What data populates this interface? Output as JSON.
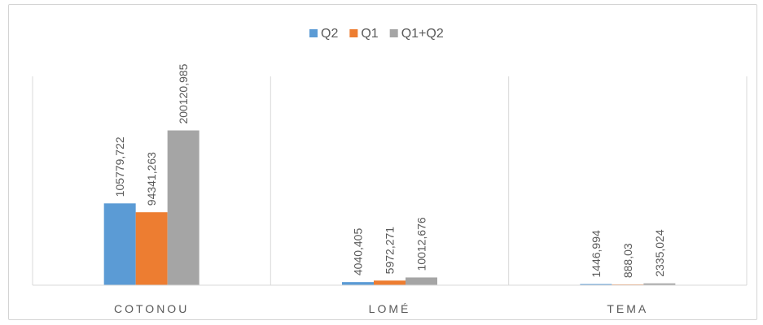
{
  "chart_data": {
    "type": "bar",
    "categories": [
      "COTONOU",
      "LOMÉ",
      "TEMA"
    ],
    "series": [
      {
        "name": "Q2",
        "color": "#5b9bd5",
        "values": [
          105779.722,
          4040.405,
          1446.994
        ],
        "labels": [
          "105779,722",
          "4040,405",
          "1446,994"
        ]
      },
      {
        "name": "Q1",
        "color": "#ed7d31",
        "values": [
          94341.263,
          5972.271,
          888.03
        ],
        "labels": [
          "94341,263",
          "5972,271",
          "888,03"
        ]
      },
      {
        "name": "Q1+Q2",
        "color": "#a5a5a5",
        "values": [
          200120.985,
          10012.676,
          2335.024
        ],
        "labels": [
          "200120,985",
          "10012,676",
          "2335,024"
        ]
      }
    ],
    "ylim": [
      0,
      270000
    ],
    "grid": false,
    "category_separators": true,
    "legend_position": "top"
  }
}
